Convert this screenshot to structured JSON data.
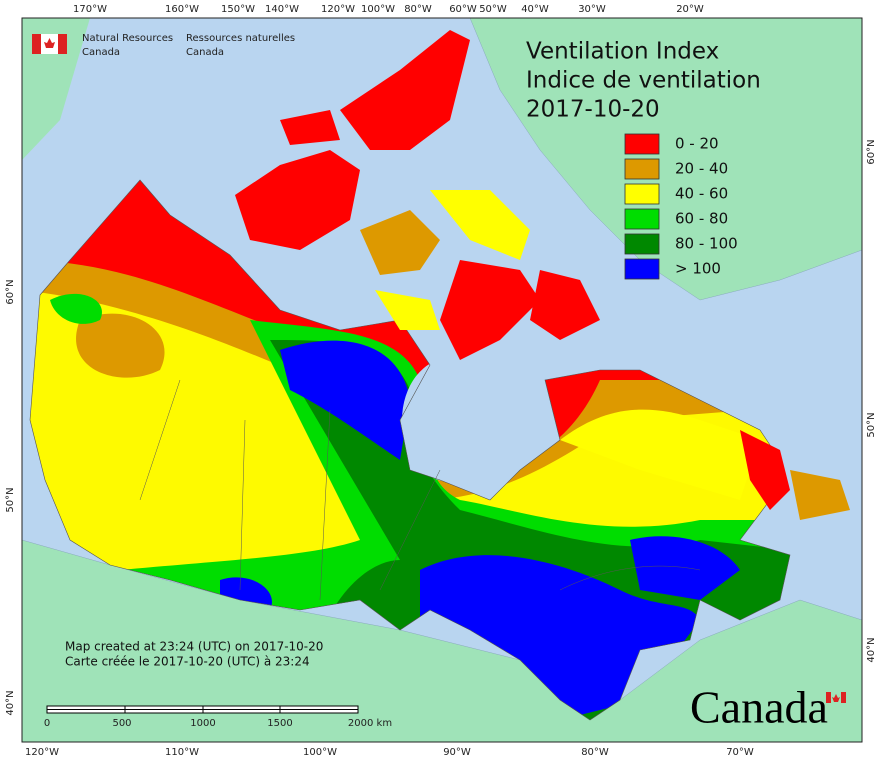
{
  "header": {
    "org_en": [
      "Natural Resources",
      "Canada"
    ],
    "org_fr": [
      "Ressources naturelles",
      "Canada"
    ]
  },
  "title": [
    "Ventilation Index",
    "Indice de ventilation",
    "2017-10-20"
  ],
  "legend": [
    {
      "label": "0 - 20",
      "color": "#ff0000"
    },
    {
      "label": "20 - 40",
      "color": "#dd9900"
    },
    {
      "label": "40 - 60",
      "color": "#ffff00"
    },
    {
      "label": "60 - 80",
      "color": "#00dd00"
    },
    {
      "label": "80 - 100",
      "color": "#008800"
    },
    {
      "label": "> 100",
      "color": "#0000ff"
    }
  ],
  "graticule": {
    "top": [
      "170°W",
      "160°W",
      "150°W",
      "140°W",
      "120°W",
      "100°W",
      "80°W",
      "60°W",
      "50°W",
      "40°W",
      "30°W",
      "20°W"
    ],
    "bottom": [
      "120°W",
      "110°W",
      "100°W",
      "90°W",
      "80°W",
      "70°W"
    ],
    "left": [
      "60°N",
      "50°N",
      "40°N"
    ],
    "right": [
      "60°N",
      "50°N",
      "40°N"
    ]
  },
  "credits": [
    "Map created at 23:24 (UTC) on 2017-10-20",
    "Carte créée le 2017-10-20 (UTC) à 23:24"
  ],
  "scale_bar": [
    "0",
    "500",
    "1000",
    "1500",
    "2000 km"
  ],
  "wordmark": "Canada"
}
